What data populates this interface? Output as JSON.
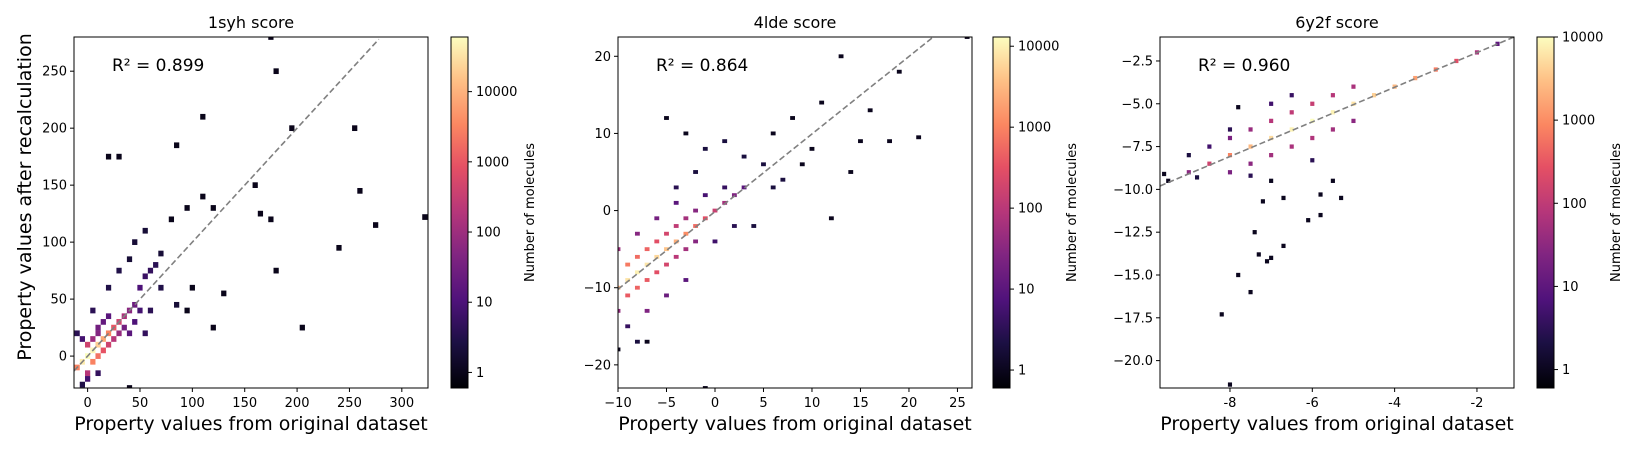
{
  "figure": {
    "ylabel": "Property values after recalculation",
    "xlabel": "Property values from original dataset",
    "colorbar_label": "Number of molecules"
  },
  "chart_data": [
    {
      "type": "heatmap",
      "title": "1syh score",
      "xlabel": "Property values from original dataset",
      "ylabel": "Property values after recalculation",
      "r2_label": "R² = 0.899",
      "xlim": [
        -13,
        325
      ],
      "ylim": [
        -28,
        280
      ],
      "xticks": [
        0,
        50,
        100,
        150,
        200,
        250,
        300
      ],
      "yticks": [
        0,
        50,
        100,
        150,
        200,
        250
      ],
      "diagonal": [
        [
          -13,
          -13
        ],
        [
          278,
          278
        ]
      ],
      "diagonal_style": "dashed gray",
      "bin": [
        5,
        5
      ],
      "points": [
        [
          -10,
          -10,
          3000
        ],
        [
          -5,
          -5,
          40000
        ],
        [
          0,
          0,
          80000
        ],
        [
          5,
          5,
          50000
        ],
        [
          10,
          10,
          20000
        ],
        [
          15,
          15,
          8000
        ],
        [
          20,
          20,
          3000
        ],
        [
          25,
          25,
          1000
        ],
        [
          30,
          30,
          400
        ],
        [
          35,
          35,
          150
        ],
        [
          40,
          40,
          60
        ],
        [
          45,
          45,
          25
        ],
        [
          0,
          10,
          400
        ],
        [
          5,
          15,
          100
        ],
        [
          10,
          20,
          50
        ],
        [
          0,
          -15,
          200
        ],
        [
          5,
          -5,
          3000
        ],
        [
          10,
          0,
          2000
        ],
        [
          15,
          5,
          900
        ],
        [
          20,
          10,
          400
        ],
        [
          25,
          15,
          200
        ],
        [
          30,
          20,
          80
        ],
        [
          35,
          25,
          30
        ],
        [
          10,
          25,
          30
        ],
        [
          15,
          30,
          20
        ],
        [
          20,
          35,
          15
        ],
        [
          50,
          60,
          10
        ],
        [
          55,
          70,
          6
        ],
        [
          60,
          75,
          5
        ],
        [
          65,
          80,
          4
        ],
        [
          40,
          20,
          15
        ],
        [
          45,
          30,
          10
        ],
        [
          50,
          40,
          8
        ],
        [
          55,
          20,
          5
        ],
        [
          60,
          40,
          4
        ],
        [
          70,
          60,
          3
        ],
        [
          -5,
          15,
          8
        ],
        [
          -10,
          20,
          4
        ],
        [
          5,
          40,
          4
        ],
        [
          20,
          60,
          3
        ],
        [
          30,
          75,
          3
        ],
        [
          40,
          85,
          2
        ],
        [
          45,
          100,
          2
        ],
        [
          55,
          110,
          2
        ],
        [
          70,
          90,
          2
        ],
        [
          80,
          120,
          1
        ],
        [
          95,
          130,
          1
        ],
        [
          110,
          140,
          1
        ],
        [
          120,
          130,
          1
        ],
        [
          85,
          45,
          2
        ],
        [
          95,
          40,
          1
        ],
        [
          100,
          60,
          1
        ],
        [
          120,
          25,
          1
        ],
        [
          130,
          55,
          1
        ],
        [
          20,
          175,
          1
        ],
        [
          30,
          175,
          1
        ],
        [
          85,
          185,
          1
        ],
        [
          110,
          210,
          1
        ],
        [
          160,
          150,
          1
        ],
        [
          165,
          125,
          1
        ],
        [
          175,
          120,
          1
        ],
        [
          180,
          75,
          1
        ],
        [
          175,
          280,
          1
        ],
        [
          180,
          250,
          1
        ],
        [
          195,
          200,
          1
        ],
        [
          205,
          25,
          1
        ],
        [
          240,
          95,
          1
        ],
        [
          255,
          200,
          1
        ],
        [
          260,
          145,
          1
        ],
        [
          275,
          115,
          1
        ],
        [
          322,
          122,
          1
        ],
        [
          40,
          -28,
          1
        ],
        [
          -5,
          -25,
          3
        ],
        [
          0,
          -20,
          8
        ],
        [
          10,
          -15,
          5
        ]
      ]
    },
    {
      "type": "heatmap",
      "title": "4lde score",
      "xlabel": "Property values from original dataset",
      "ylabel": "",
      "r2_label": "R² = 0.864",
      "xlim": [
        -10,
        26.5
      ],
      "ylim": [
        -23,
        22.5
      ],
      "xticks": [
        -10,
        -5,
        0,
        5,
        10,
        15,
        20,
        25
      ],
      "yticks": [
        -20,
        -10,
        0,
        10,
        20
      ],
      "diagonal": [
        [
          -10,
          -10.2
        ],
        [
          22.5,
          22.5
        ]
      ],
      "diagonal_style": "dashed gray",
      "bin": [
        0.5,
        0.5
      ],
      "points": [
        [
          -10,
          -10,
          3000
        ],
        [
          -9,
          -9,
          8000
        ],
        [
          -8,
          -8,
          10000
        ],
        [
          -7,
          -7,
          8000
        ],
        [
          -6,
          -6,
          6000
        ],
        [
          -5,
          -5,
          4000
        ],
        [
          -4,
          -4,
          2500
        ],
        [
          -3,
          -3,
          1200
        ],
        [
          -2,
          -2,
          600
        ],
        [
          -1,
          -1,
          300
        ],
        [
          0,
          0,
          150
        ],
        [
          1,
          1,
          60
        ],
        [
          2,
          2,
          25
        ],
        [
          3,
          3,
          10
        ],
        [
          -9,
          -7,
          800
        ],
        [
          -8,
          -6,
          600
        ],
        [
          -7,
          -5,
          500
        ],
        [
          -6,
          -4,
          300
        ],
        [
          -5,
          -3,
          200
        ],
        [
          -4,
          -2,
          120
        ],
        [
          -3,
          -1,
          60
        ],
        [
          -2,
          0,
          30
        ],
        [
          -9,
          -11,
          400
        ],
        [
          -8,
          -10,
          500
        ],
        [
          -7,
          -9,
          400
        ],
        [
          -6,
          -8,
          300
        ],
        [
          -5,
          -7,
          200
        ],
        [
          -4,
          -6,
          100
        ],
        [
          -3,
          -5,
          60
        ],
        [
          -2,
          -4,
          30
        ],
        [
          -10,
          -5,
          50
        ],
        [
          -10,
          -13,
          40
        ],
        [
          -8,
          -3,
          30
        ],
        [
          -7,
          -13,
          25
        ],
        [
          -6,
          -1,
          20
        ],
        [
          -5,
          -11,
          15
        ],
        [
          -4,
          1,
          10
        ],
        [
          -3,
          -9,
          10
        ],
        [
          -1,
          2,
          6
        ],
        [
          0,
          -4,
          5
        ],
        [
          1,
          3,
          4
        ],
        [
          2,
          -2,
          3
        ],
        [
          -9,
          -15,
          4
        ],
        [
          -8,
          -17,
          2
        ],
        [
          -10,
          -18,
          1
        ],
        [
          -7,
          -17,
          1
        ],
        [
          -5,
          12,
          1
        ],
        [
          -3,
          10,
          1
        ],
        [
          -1,
          8,
          2
        ],
        [
          1,
          9,
          2
        ],
        [
          3,
          7,
          2
        ],
        [
          5,
          6,
          2
        ],
        [
          6,
          10,
          1
        ],
        [
          8,
          12,
          1
        ],
        [
          10,
          8,
          1
        ],
        [
          11,
          14,
          1
        ],
        [
          13,
          20,
          1
        ],
        [
          12,
          -1,
          1
        ],
        [
          14,
          5,
          1
        ],
        [
          15,
          9,
          1
        ],
        [
          19,
          18,
          1
        ],
        [
          18,
          9,
          1
        ],
        [
          21,
          9.5,
          1
        ],
        [
          26,
          22.5,
          1
        ],
        [
          -1,
          -23,
          1
        ],
        [
          4,
          -2,
          2
        ],
        [
          6,
          3,
          2
        ],
        [
          7,
          4,
          2
        ],
        [
          9,
          6,
          1
        ],
        [
          16,
          13,
          1
        ],
        [
          -2,
          5,
          2
        ],
        [
          -4,
          3,
          3
        ]
      ]
    },
    {
      "type": "heatmap",
      "title": "6y2f score",
      "xlabel": "Property values from original dataset",
      "ylabel": "",
      "r2_label": "R² = 0.960",
      "xlim": [
        -9.7,
        -1.1
      ],
      "ylim": [
        -21.6,
        -1.1
      ],
      "xticks": [
        -8,
        -6,
        -4,
        -2
      ],
      "yticks": [
        -20.0,
        -17.5,
        -15.0,
        -12.5,
        -10.0,
        -7.5,
        -5.0,
        -2.5
      ],
      "tick_format": "1f",
      "diagonal": [
        [
          -9.7,
          -9.8
        ],
        [
          -1.1,
          -1.1
        ]
      ],
      "diagonal_style": "dashed gray",
      "bin": [
        0.1,
        0.25
      ],
      "points": [
        [
          -9.5,
          -9.5,
          1
        ],
        [
          -9,
          -9,
          30
        ],
        [
          -8.5,
          -8.5,
          150
        ],
        [
          -8,
          -8,
          800
        ],
        [
          -7.5,
          -7.5,
          2500
        ],
        [
          -7,
          -7,
          5000
        ],
        [
          -6.5,
          -6.5,
          8000
        ],
        [
          -6,
          -6,
          10000
        ],
        [
          -5.5,
          -5.5,
          8000
        ],
        [
          -5,
          -5,
          6000
        ],
        [
          -4.5,
          -4.5,
          4000
        ],
        [
          -4,
          -4,
          2500
        ],
        [
          -3.5,
          -3.5,
          1500
        ],
        [
          -3,
          -3,
          700
        ],
        [
          -2.5,
          -2.5,
          250
        ],
        [
          -2,
          -2,
          60
        ],
        [
          -1.5,
          -1.5,
          10
        ],
        [
          -8,
          -7,
          20
        ],
        [
          -7.5,
          -6.5,
          40
        ],
        [
          -7,
          -6,
          80
        ],
        [
          -6.5,
          -5.5,
          100
        ],
        [
          -6,
          -5,
          120
        ],
        [
          -5.5,
          -4.5,
          80
        ],
        [
          -5,
          -4,
          60
        ],
        [
          -8,
          -9,
          20
        ],
        [
          -7.5,
          -8.5,
          30
        ],
        [
          -7,
          -8,
          50
        ],
        [
          -6.5,
          -7.5,
          60
        ],
        [
          -6,
          -7,
          70
        ],
        [
          -5.5,
          -6.5,
          50
        ],
        [
          -5,
          -6,
          30
        ],
        [
          -8.5,
          -7.5,
          5
        ],
        [
          -8,
          -6.5,
          3
        ],
        [
          -9,
          -8,
          2
        ],
        [
          -7,
          -5,
          5
        ],
        [
          -6.5,
          -4.5,
          4
        ],
        [
          -8.8,
          -9.3,
          2
        ],
        [
          -7.8,
          -5.2,
          1
        ],
        [
          -7.5,
          -9.2,
          3
        ],
        [
          -7,
          -9.5,
          1
        ],
        [
          -6,
          -8.3,
          3
        ],
        [
          -5.5,
          -9.5,
          1
        ],
        [
          -6.7,
          -10.5,
          1
        ],
        [
          -7.2,
          -10.7,
          1
        ],
        [
          -5.8,
          -10.3,
          1
        ],
        [
          -5.3,
          -10.5,
          1
        ],
        [
          -7.4,
          -12.5,
          1
        ],
        [
          -7.3,
          -13.8,
          1
        ],
        [
          -7.0,
          -14.0,
          1
        ],
        [
          -7.1,
          -14.2,
          1
        ],
        [
          -6.7,
          -13.3,
          1
        ],
        [
          -6.1,
          -11.8,
          1
        ],
        [
          -5.8,
          -11.5,
          1
        ],
        [
          -7.8,
          -15.0,
          1
        ],
        [
          -7.5,
          -16.0,
          1
        ],
        [
          -8.2,
          -17.3,
          1
        ],
        [
          -8.0,
          -21.4,
          1
        ],
        [
          -9.6,
          -9.1,
          1
        ]
      ]
    }
  ],
  "colorbars": [
    {
      "label": "Number of molecules",
      "min": 0.6,
      "max": 60000,
      "scale": "log",
      "ticks": [
        1,
        10,
        100,
        1000,
        10000
      ],
      "tick_labels": [
        "1",
        "10",
        "100",
        "1000",
        "10000"
      ]
    },
    {
      "label": "Number of molecules",
      "min": 0.6,
      "max": 13000,
      "scale": "log",
      "ticks": [
        1,
        10,
        100,
        1000,
        10000
      ],
      "tick_labels": [
        "1",
        "10",
        "100",
        "1000",
        "10000"
      ]
    },
    {
      "label": "Number of molecules",
      "min": 0.6,
      "max": 10000,
      "scale": "log",
      "ticks": [
        1,
        10,
        100,
        1000,
        10000
      ],
      "tick_labels": [
        "1",
        "10",
        "100",
        "1000",
        "10000"
      ]
    }
  ],
  "colormap": "magma"
}
